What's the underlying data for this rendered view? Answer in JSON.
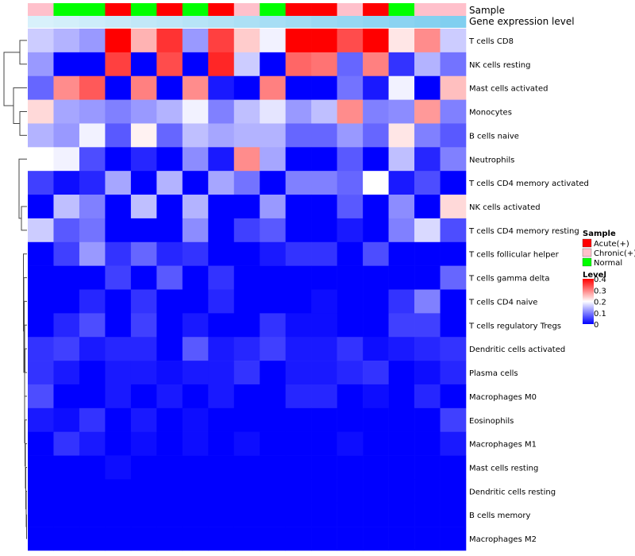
{
  "chart_data": {
    "type": "heatmap",
    "title": "",
    "annotation_rows": [
      {
        "name": "Sample",
        "label": "Sample"
      },
      {
        "name": "Gene expression level",
        "label": "Gene expression level"
      }
    ],
    "sample_groups": [
      "Chronic(+)",
      "Normal",
      "Normal",
      "Acute(+)",
      "Normal",
      "Acute(+)",
      "Normal",
      "Acute(+)",
      "Chronic(+)",
      "Normal",
      "Acute(+)",
      "Acute(+)",
      "Chronic(+)",
      "Acute(+)",
      "Normal",
      "Chronic(+)",
      "Chronic(+)"
    ],
    "gene_expression_level": [
      0.1,
      0.14,
      0.18,
      0.22,
      0.26,
      0.3,
      0.34,
      0.38,
      0.42,
      0.46,
      0.5,
      0.54,
      0.58,
      0.62,
      0.66,
      0.7,
      0.74
    ],
    "rows": [
      "T cells CD8",
      "NK cells resting",
      "Mast cells activated",
      "Monocytes",
      "B cells naive",
      "Neutrophils",
      "T cells CD4 memory activated",
      "NK cells activated",
      "T cells CD4 memory resting",
      "T cells follicular helper",
      "T cells gamma delta",
      "T cells CD4 naive",
      "T cells regulatory  Tregs",
      "Dendritic cells activated",
      "Plasma cells",
      "Macrophages M0",
      "Eosinophils",
      "Macrophages M1",
      "Mast cells resting",
      "Dendritic cells resting",
      "B cells memory",
      "Macrophages M2"
    ],
    "values": [
      [
        0.16,
        0.14,
        0.12,
        0.4,
        0.26,
        0.36,
        0.12,
        0.35,
        0.24,
        0.19,
        0.4,
        0.4,
        0.34,
        0.4,
        0.22,
        0.29,
        0.16
      ],
      [
        0.12,
        0.0,
        0.0,
        0.35,
        0.0,
        0.34,
        0.0,
        0.37,
        0.16,
        0.0,
        0.32,
        0.31,
        0.08,
        0.3,
        0.04,
        0.14,
        0.09
      ],
      [
        0.08,
        0.29,
        0.33,
        0.0,
        0.3,
        0.0,
        0.29,
        0.02,
        0.0,
        0.3,
        0.0,
        0.0,
        0.09,
        0.02,
        0.19,
        0.0,
        0.25
      ],
      [
        0.23,
        0.13,
        0.12,
        0.1,
        0.12,
        0.14,
        0.19,
        0.1,
        0.15,
        0.18,
        0.12,
        0.15,
        0.29,
        0.1,
        0.11,
        0.28,
        0.1
      ],
      [
        0.14,
        0.12,
        0.19,
        0.07,
        0.21,
        0.08,
        0.15,
        0.13,
        0.14,
        0.14,
        0.08,
        0.08,
        0.12,
        0.08,
        0.22,
        0.1,
        0.07
      ],
      [
        0.2,
        0.19,
        0.06,
        0.0,
        0.03,
        0.0,
        0.11,
        0.02,
        0.29,
        0.13,
        0.0,
        0.0,
        0.07,
        0.0,
        0.15,
        0.03,
        0.1
      ],
      [
        0.05,
        0.01,
        0.03,
        0.13,
        0.0,
        0.14,
        0.0,
        0.13,
        0.09,
        0.0,
        0.1,
        0.1,
        0.08,
        0.2,
        0.02,
        0.06,
        0.0
      ],
      [
        0.0,
        0.15,
        0.1,
        0.0,
        0.15,
        0.0,
        0.14,
        0.0,
        0.0,
        0.12,
        0.0,
        0.0,
        0.07,
        0.0,
        0.11,
        0.0,
        0.23
      ],
      [
        0.16,
        0.07,
        0.09,
        0.0,
        0.0,
        0.0,
        0.11,
        0.0,
        0.05,
        0.07,
        0.0,
        0.0,
        0.02,
        0.0,
        0.1,
        0.17,
        0.06
      ],
      [
        0.0,
        0.05,
        0.12,
        0.04,
        0.08,
        0.03,
        0.04,
        0.0,
        0.0,
        0.02,
        0.04,
        0.04,
        0.0,
        0.06,
        0.0,
        0.0,
        0.0
      ],
      [
        0.0,
        0.0,
        0.0,
        0.05,
        0.0,
        0.07,
        0.0,
        0.04,
        0.0,
        0.0,
        0.0,
        0.0,
        0.0,
        0.0,
        0.0,
        0.0,
        0.08
      ],
      [
        0.0,
        0.0,
        0.03,
        0.0,
        0.04,
        0.0,
        0.0,
        0.03,
        0.0,
        0.0,
        0.0,
        0.01,
        0.0,
        0.0,
        0.04,
        0.1,
        0.0
      ],
      [
        0.0,
        0.03,
        0.06,
        0.0,
        0.05,
        0.0,
        0.02,
        0.0,
        0.0,
        0.04,
        0.01,
        0.01,
        0.0,
        0.0,
        0.05,
        0.05,
        0.0
      ],
      [
        0.04,
        0.05,
        0.02,
        0.03,
        0.03,
        0.0,
        0.07,
        0.02,
        0.03,
        0.05,
        0.02,
        0.02,
        0.04,
        0.01,
        0.02,
        0.03,
        0.04
      ],
      [
        0.04,
        0.02,
        0.0,
        0.02,
        0.02,
        0.01,
        0.02,
        0.02,
        0.04,
        0.0,
        0.02,
        0.02,
        0.03,
        0.04,
        0.0,
        0.01,
        0.03
      ],
      [
        0.06,
        0.0,
        0.0,
        0.02,
        0.0,
        0.02,
        0.0,
        0.02,
        0.0,
        0.0,
        0.03,
        0.03,
        0.0,
        0.01,
        0.0,
        0.03,
        0.0
      ],
      [
        0.02,
        0.01,
        0.04,
        0.0,
        0.02,
        0.0,
        0.01,
        0.0,
        0.0,
        0.0,
        0.0,
        0.0,
        0.0,
        0.0,
        0.0,
        0.0,
        0.05
      ],
      [
        0.0,
        0.04,
        0.02,
        0.0,
        0.01,
        0.0,
        0.01,
        0.0,
        0.01,
        0.0,
        0.0,
        0.0,
        0.01,
        0.0,
        0.0,
        0.0,
        0.02
      ],
      [
        0.0,
        0.0,
        0.0,
        0.01,
        0.0,
        0.0,
        0.0,
        0.0,
        0.0,
        0.0,
        0.0,
        0.0,
        0.0,
        0.0,
        0.0,
        0.0,
        0.0
      ],
      [
        0.0,
        0.0,
        0.0,
        0.0,
        0.0,
        0.0,
        0.0,
        0.0,
        0.0,
        0.0,
        0.0,
        0.0,
        0.0,
        0.0,
        0.0,
        0.0,
        0.0
      ],
      [
        0.0,
        0.0,
        0.0,
        0.0,
        0.0,
        0.0,
        0.0,
        0.0,
        0.0,
        0.0,
        0.0,
        0.0,
        0.0,
        0.0,
        0.0,
        0.0,
        0.0
      ],
      [
        0.0,
        0.0,
        0.0,
        0.0,
        0.0,
        0.0,
        0.0,
        0.0,
        0.0,
        0.0,
        0.0,
        0.0,
        0.0,
        0.0,
        0.0,
        0.0,
        0.0
      ]
    ],
    "color_range": [
      0,
      0.4
    ],
    "legend": {
      "sample": {
        "title": "Sample",
        "items": [
          {
            "label": "Acute(+)",
            "color": "#ff0000"
          },
          {
            "label": "Chronic(+)",
            "color": "#ffc0cb"
          },
          {
            "label": "Normal",
            "color": "#00ff00"
          }
        ]
      },
      "level": {
        "title": "Level",
        "ticks": [
          {
            "label": "0.4",
            "value": 0.4
          },
          {
            "label": "0.3",
            "value": 0.3
          },
          {
            "label": "0.2",
            "value": 0.2
          },
          {
            "label": "0.1",
            "value": 0.1
          },
          {
            "label": "0",
            "value": 0
          }
        ]
      },
      "placement": "right"
    },
    "dendrogram": "rows"
  },
  "colors": {
    "low": "#0000ff",
    "mid": "#ffffff",
    "high": "#ff0000",
    "expr_low": "#e6f6fd",
    "expr_high": "#5cc1eb",
    "Acute(+)": "#ff0000",
    "Chronic(+)": "#ffc0cb",
    "Normal": "#00ff00"
  }
}
